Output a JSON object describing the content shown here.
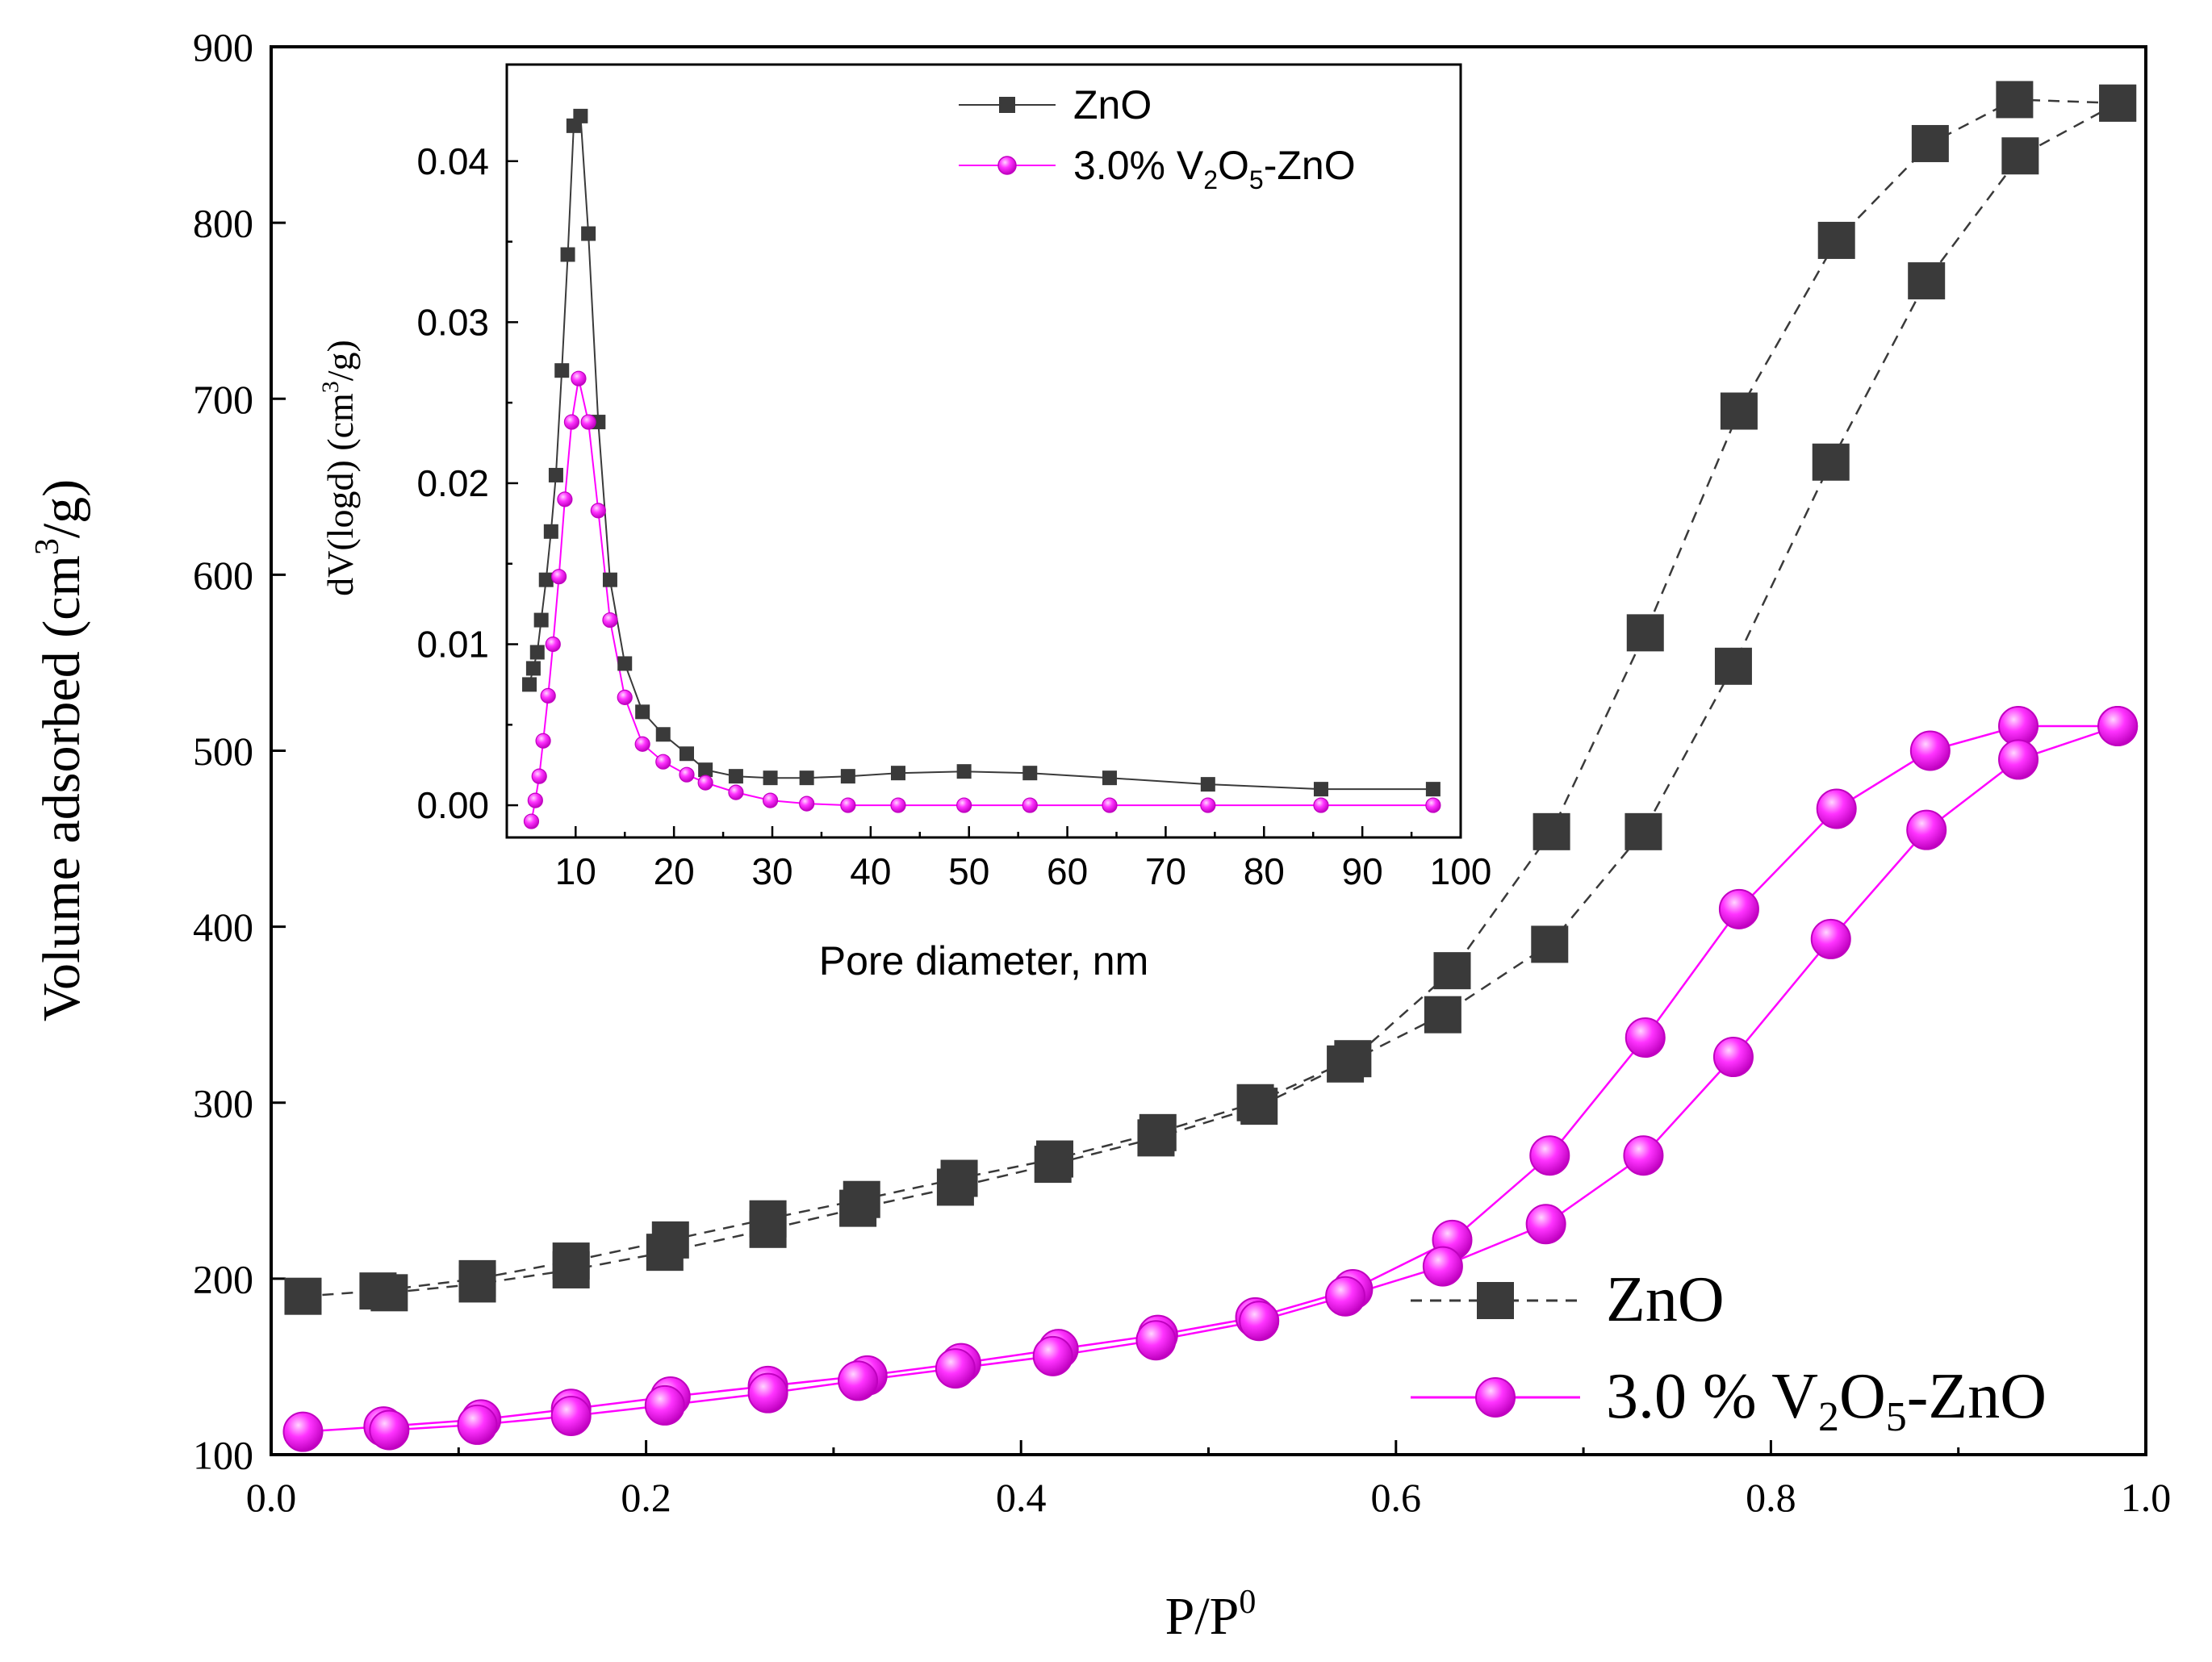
{
  "colors": {
    "zno": "#3a3a3a",
    "vzno": "#ff00ff",
    "axis": "#000000",
    "background": "#ffffff"
  },
  "chart_data": [
    {
      "type": "scatter",
      "role": "main",
      "title": "",
      "xlabel": "P/P",
      "xlabel_sup": "0",
      "ylabel_pre": "Volume adsorbed (cm",
      "ylabel_sup": "3",
      "ylabel_post": "/g)",
      "xlim": [
        0.0,
        1.0
      ],
      "ylim": [
        100,
        900
      ],
      "xticks": [
        "0.0",
        "0.2",
        "0.4",
        "0.6",
        "0.8",
        "1.0"
      ],
      "xtick_values": [
        0.0,
        0.2,
        0.4,
        0.6,
        0.8,
        1.0
      ],
      "yticks": [
        "100",
        "200",
        "300",
        "400",
        "500",
        "600",
        "700",
        "800",
        "900"
      ],
      "ytick_values": [
        100,
        200,
        300,
        400,
        500,
        600,
        700,
        800,
        900
      ],
      "grid": false,
      "legend_position": "bottom-right",
      "legend": [
        {
          "label": "ZnO",
          "marker": "square",
          "line": "dashed",
          "color": "#3a3a3a"
        },
        {
          "label_pre": "3.0 % V",
          "sub1": "2",
          "label_mid": "O",
          "sub2": "5",
          "label_post": "-ZnO",
          "marker": "sphere",
          "line": "solid",
          "color": "#ff00ff"
        }
      ],
      "series": [
        {
          "name": "ZnO adsorption",
          "color": "#3a3a3a",
          "marker": "square",
          "line": "dashed",
          "x": [
            0.017,
            0.057,
            0.11,
            0.16,
            0.213,
            0.265,
            0.315,
            0.367,
            0.418,
            0.473,
            0.525,
            0.577,
            0.63,
            0.683,
            0.733,
            0.783,
            0.835,
            0.885,
            0.93,
            0.985
          ],
          "y": [
            190,
            193,
            200,
            210,
            222,
            234,
            245,
            257,
            268,
            283,
            300,
            325,
            375,
            454,
            567,
            693,
            790,
            845,
            870,
            868
          ]
        },
        {
          "name": "ZnO desorption",
          "color": "#3a3a3a",
          "marker": "square",
          "line": "dashed",
          "x": [
            0.985,
            0.933,
            0.883,
            0.832,
            0.78,
            0.732,
            0.682,
            0.625,
            0.573,
            0.527,
            0.472,
            0.417,
            0.365,
            0.313,
            0.265,
            0.21,
            0.16,
            0.11,
            0.063
          ],
          "y": [
            868,
            838,
            767,
            664,
            548,
            454,
            390,
            350,
            322,
            298,
            280,
            265,
            252,
            240,
            228,
            215,
            205,
            197,
            192
          ]
        },
        {
          "name": "3.0% V2O5-ZnO adsorption",
          "color": "#ff00ff",
          "marker": "sphere",
          "line": "solid",
          "x": [
            0.017,
            0.06,
            0.112,
            0.16,
            0.213,
            0.265,
            0.318,
            0.368,
            0.42,
            0.473,
            0.525,
            0.577,
            0.63,
            0.682,
            0.733,
            0.783,
            0.835,
            0.885,
            0.932,
            0.985
          ],
          "y": [
            113,
            116,
            120,
            126,
            133,
            139,
            145,
            152,
            160,
            168,
            178,
            194,
            222,
            270,
            337,
            410,
            467,
            500,
            514,
            514
          ]
        },
        {
          "name": "3.0% V2O5-ZnO desorption",
          "color": "#ff00ff",
          "marker": "sphere",
          "line": "solid",
          "x": [
            0.985,
            0.932,
            0.883,
            0.832,
            0.78,
            0.732,
            0.68,
            0.625,
            0.573,
            0.527,
            0.472,
            0.417,
            0.365,
            0.313,
            0.265,
            0.21,
            0.16,
            0.11,
            0.063
          ],
          "y": [
            514,
            495,
            455,
            393,
            326,
            270,
            231,
            207,
            190,
            176,
            165,
            156,
            149,
            142,
            135,
            128,
            122,
            117,
            114
          ]
        }
      ]
    },
    {
      "type": "line",
      "role": "inset",
      "title": "",
      "xlabel": "Pore diameter, nm",
      "ylabel_pre": "dV(logd) (cm",
      "ylabel_sup": "3",
      "ylabel_post": "/g)",
      "xlim": [
        3,
        100
      ],
      "ylim": [
        -0.002,
        0.046
      ],
      "xticks": [
        "10",
        "20",
        "30",
        "40",
        "50",
        "60",
        "70",
        "80",
        "90",
        "100"
      ],
      "xtick_values": [
        10,
        20,
        30,
        40,
        50,
        60,
        70,
        80,
        90,
        100
      ],
      "yticks": [
        "0.00",
        "0.01",
        "0.02",
        "0.03",
        "0.04"
      ],
      "ytick_values": [
        0.0,
        0.01,
        0.02,
        0.03,
        0.04
      ],
      "grid": false,
      "legend_position": "top-center",
      "legend": [
        {
          "label": "ZnO",
          "marker": "square",
          "color": "#3a3a3a"
        },
        {
          "label_pre": "3.0% V",
          "sub1": "2",
          "label_mid": "O",
          "sub2": "5",
          "label_post": "-ZnO",
          "marker": "sphere",
          "color": "#ff00ff"
        }
      ],
      "series": [
        {
          "name": "ZnO",
          "color": "#3a3a3a",
          "marker": "square",
          "x": [
            5.3,
            5.7,
            6.1,
            6.5,
            7.0,
            7.5,
            8.0,
            8.6,
            9.2,
            9.8,
            10.5,
            11.3,
            12.3,
            13.5,
            15.0,
            16.8,
            18.9,
            21.3,
            23.2,
            26.3,
            29.8,
            33.5,
            37.7,
            42.8,
            49.5,
            56.2,
            64.3,
            74.3,
            85.8,
            97.2
          ],
          "y": [
            0.0075,
            0.0085,
            0.0095,
            0.0115,
            0.014,
            0.017,
            0.0205,
            0.027,
            0.0342,
            0.0422,
            0.0428,
            0.0355,
            0.0238,
            0.014,
            0.0088,
            0.0058,
            0.0044,
            0.0032,
            0.0022,
            0.0018,
            0.0017,
            0.0017,
            0.0018,
            0.002,
            0.0021,
            0.002,
            0.0017,
            0.0013,
            0.001,
            0.001
          ]
        },
        {
          "name": "3.0% V2O5-ZnO",
          "color": "#ff00ff",
          "marker": "sphere",
          "x": [
            5.5,
            5.9,
            6.3,
            6.7,
            7.2,
            7.7,
            8.3,
            8.9,
            9.6,
            10.3,
            11.3,
            12.3,
            13.5,
            15.0,
            16.8,
            18.9,
            21.3,
            23.2,
            26.3,
            29.8,
            33.5,
            37.7,
            42.8,
            49.5,
            56.2,
            64.3,
            74.3,
            85.8,
            97.2
          ],
          "y": [
            -0.001,
            0.0003,
            0.0018,
            0.004,
            0.0068,
            0.01,
            0.0142,
            0.019,
            0.0238,
            0.0265,
            0.0238,
            0.0183,
            0.0115,
            0.0067,
            0.0038,
            0.0027,
            0.0019,
            0.0014,
            0.0008,
            0.0003,
            0.0001,
            0.0,
            0.0,
            0.0,
            0.0,
            0.0,
            0.0,
            0.0,
            0.0
          ]
        }
      ]
    }
  ]
}
